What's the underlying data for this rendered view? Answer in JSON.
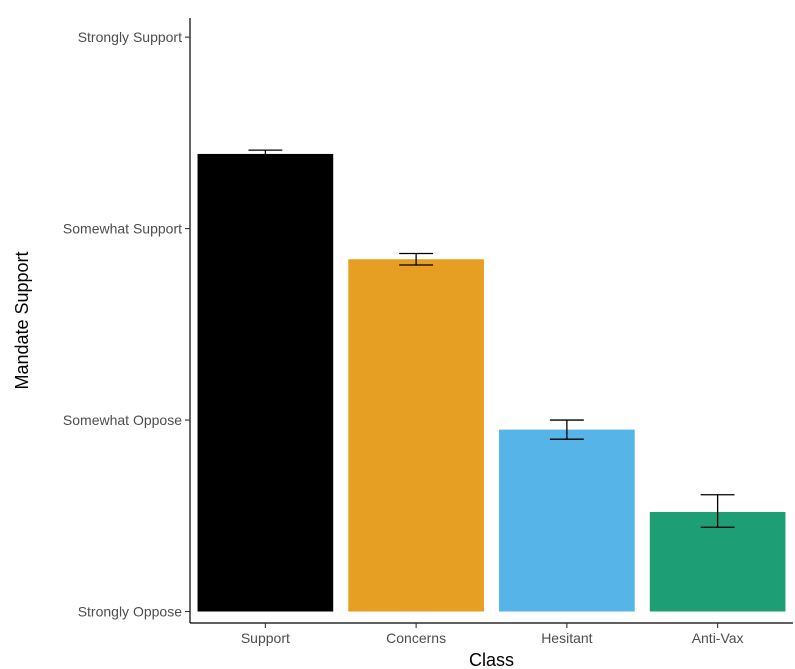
{
  "chart_data": {
    "type": "bar",
    "title": "",
    "xlabel": "Class",
    "ylabel": "Mandate Support",
    "categories": [
      "Support",
      "Concerns",
      "Hesitant",
      "Anti-Vax"
    ],
    "values": [
      3.39,
      2.84,
      1.95,
      1.52
    ],
    "error": [
      {
        "low": 3.37,
        "high": 3.41
      },
      {
        "low": 2.81,
        "high": 2.87
      },
      {
        "low": 1.9,
        "high": 2.0
      },
      {
        "low": 1.44,
        "high": 1.61
      }
    ],
    "colors": [
      "#000000",
      "#E69F22",
      "#56B4E9",
      "#1E9E74"
    ],
    "y_ticks": [
      {
        "value": 1,
        "label": "Strongly Oppose"
      },
      {
        "value": 2,
        "label": "Somewhat Oppose"
      },
      {
        "value": 3,
        "label": "Somewhat Support"
      },
      {
        "value": 4,
        "label": "Strongly Support"
      }
    ],
    "ylim": [
      0.94,
      4.1
    ],
    "grid": false,
    "legend": "none"
  }
}
